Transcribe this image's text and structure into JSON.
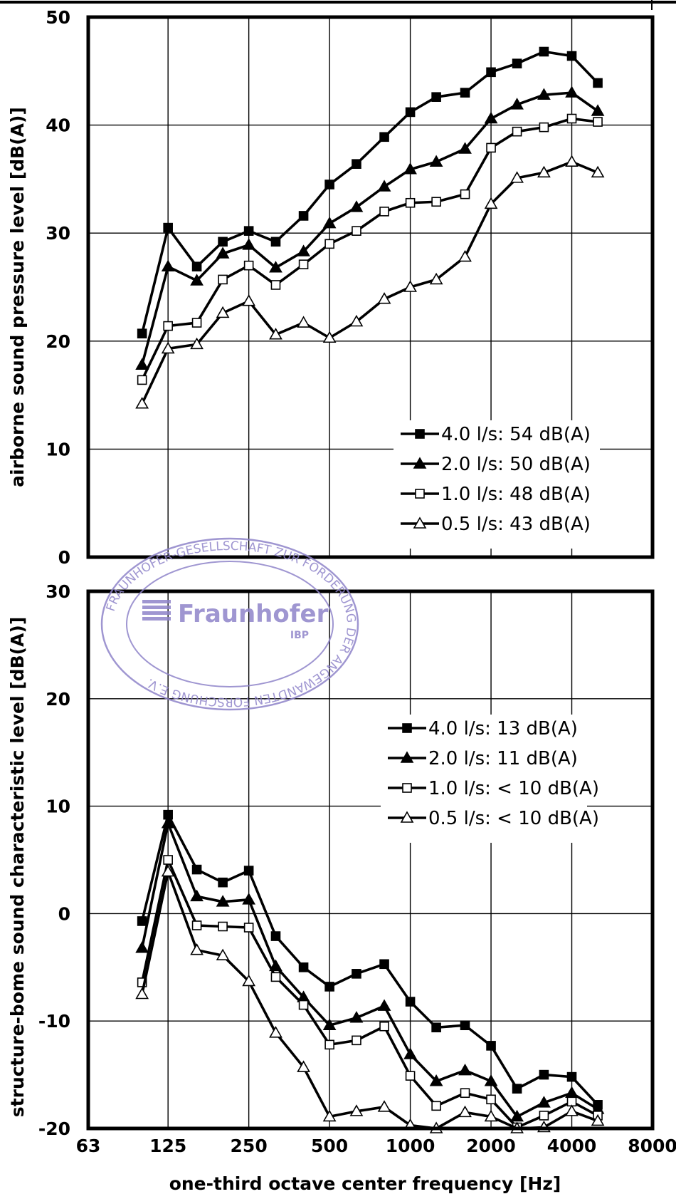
{
  "stamp": {
    "ring_text": "FRAUNHOFER-GESELLSCHAFT ZUR FÖRDERUNG DER ANGEWANDTEN FORSCHUNG E.V.",
    "brand": "Fraunhofer",
    "institute": "IBP",
    "color": "#8f84c9"
  },
  "chart_data": [
    {
      "type": "line",
      "ylabel": "airborne sound pressure level [dB(A)]",
      "xlabel": "",
      "x_scale": "log2",
      "x_ticks": [
        63,
        125,
        250,
        500,
        1000,
        2000,
        4000,
        8000
      ],
      "x_tick_labels": [
        "",
        "",
        "",
        "",
        "",
        "",
        "",
        ""
      ],
      "xlim": [
        63,
        8000
      ],
      "ylim": [
        0,
        50
      ],
      "y_ticks": [
        0,
        10,
        20,
        30,
        40,
        50
      ],
      "grid": true,
      "legend_position": "bottom-right",
      "x": [
        100,
        125,
        160,
        200,
        250,
        315,
        400,
        500,
        630,
        800,
        1000,
        1250,
        1600,
        2000,
        2500,
        3150,
        4000,
        5000
      ],
      "series": [
        {
          "name": "4.0 l/s: 54 dB(A)",
          "marker": "filled-square",
          "values": [
            20.7,
            30.5,
            26.9,
            29.2,
            30.2,
            29.2,
            31.6,
            34.5,
            36.4,
            38.9,
            41.2,
            42.6,
            43.0,
            44.9,
            45.7,
            46.8,
            46.4,
            43.9
          ]
        },
        {
          "name": "2.0 l/s: 50 dB(A)",
          "marker": "filled-triangle",
          "values": [
            17.8,
            26.9,
            25.6,
            28.1,
            28.9,
            26.8,
            28.3,
            30.9,
            32.4,
            34.3,
            35.9,
            36.6,
            37.8,
            40.6,
            41.9,
            42.8,
            43.0,
            41.3
          ]
        },
        {
          "name": "1.0 l/s: 48 dB(A)",
          "marker": "open-square",
          "values": [
            16.4,
            21.4,
            21.7,
            25.7,
            27.0,
            25.2,
            27.1,
            29.0,
            30.2,
            32.0,
            32.8,
            32.9,
            33.6,
            37.9,
            39.4,
            39.8,
            40.6,
            40.3
          ]
        },
        {
          "name": "0.5 l/s: 43 dB(A)",
          "marker": "open-triangle",
          "values": [
            14.2,
            19.3,
            19.7,
            22.6,
            23.7,
            20.6,
            21.7,
            20.3,
            21.8,
            23.9,
            25.0,
            25.7,
            27.8,
            32.7,
            35.1,
            35.6,
            36.6,
            35.6
          ]
        }
      ]
    },
    {
      "type": "line",
      "ylabel": "structure-bome sound characteristic level [dB(A)]",
      "xlabel": "one-third octave center frequency [Hz]",
      "x_scale": "log2",
      "x_ticks": [
        63,
        125,
        250,
        500,
        1000,
        2000,
        4000,
        8000
      ],
      "x_tick_labels": [
        "63",
        "125",
        "250",
        "500",
        "1000",
        "2000",
        "4000",
        "8000"
      ],
      "xlim": [
        63,
        8000
      ],
      "ylim": [
        -20,
        30
      ],
      "y_ticks": [
        -20,
        -10,
        0,
        10,
        20,
        30
      ],
      "grid": true,
      "legend_position": "top-right",
      "x": [
        100,
        125,
        160,
        200,
        250,
        315,
        400,
        500,
        630,
        800,
        1000,
        1250,
        1600,
        2000,
        2500,
        3150,
        4000,
        5000
      ],
      "series": [
        {
          "name": "4.0 l/s: 13 dB(A)",
          "marker": "filled-square",
          "values": [
            -0.7,
            9.2,
            4.1,
            2.9,
            4.0,
            -2.1,
            -5.0,
            -6.8,
            -5.6,
            -4.7,
            -8.2,
            -10.6,
            -10.4,
            -12.3,
            -16.3,
            -15.0,
            -15.2,
            -17.8
          ]
        },
        {
          "name": "2.0 l/s: 11 dB(A)",
          "marker": "filled-triangle",
          "values": [
            -3.2,
            8.4,
            1.6,
            1.1,
            1.3,
            -4.9,
            -7.8,
            -10.4,
            -9.7,
            -8.6,
            -13.1,
            -15.6,
            -14.6,
            -15.6,
            -18.9,
            -17.6,
            -16.7,
            -18.2
          ]
        },
        {
          "name": "1.0 l/s: < 10 dB(A)",
          "marker": "open-square",
          "values": [
            -6.4,
            5.0,
            -1.1,
            -1.2,
            -1.3,
            -5.9,
            -8.5,
            -12.2,
            -11.8,
            -10.5,
            -15.1,
            -17.9,
            -16.7,
            -17.3,
            -19.9,
            -18.8,
            -17.5,
            -18.8
          ]
        },
        {
          "name": "0.5 l/s: < 10 dB(A)",
          "marker": "open-triangle",
          "values": [
            -7.5,
            3.9,
            -3.4,
            -3.9,
            -6.3,
            -11.1,
            -14.3,
            -18.9,
            -18.4,
            -18.0,
            -19.7,
            -20.0,
            -18.5,
            -18.9,
            -20.0,
            -19.9,
            -18.4,
            -19.3
          ]
        }
      ]
    }
  ]
}
